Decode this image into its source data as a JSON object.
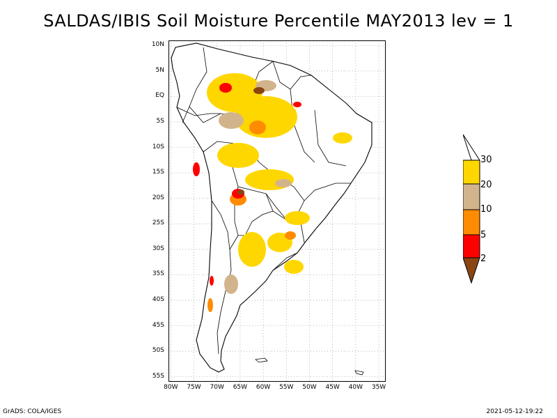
{
  "title": "SALDAS/IBIS Soil Moisture Percentile MAY2013 lev = 1",
  "map": {
    "lat_ticks": [
      "10N",
      "5N",
      "EQ",
      "5S",
      "10S",
      "15S",
      "20S",
      "25S",
      "30S",
      "35S",
      "40S",
      "45S",
      "50S",
      "55S"
    ],
    "lon_ticks": [
      "80W",
      "75W",
      "70W",
      "65W",
      "60W",
      "55W",
      "50W",
      "45W",
      "40W",
      "35W"
    ],
    "lon_range": [
      -80.5,
      -33.5
    ],
    "lat_range": [
      -56,
      11
    ]
  },
  "legend": {
    "labels": [
      "30",
      "20",
      "10",
      "5",
      "2"
    ],
    "colors": {
      "above30": "#ffffff",
      "c20_30": "#ffd700",
      "c10_20": "#d2b48c",
      "c5_10": "#ff8c00",
      "c2_5": "#ff0000",
      "below2": "#8b4513"
    }
  },
  "footer": {
    "left": "GrADS: COLA/IGES",
    "right": "2021-05-12-19:22"
  }
}
